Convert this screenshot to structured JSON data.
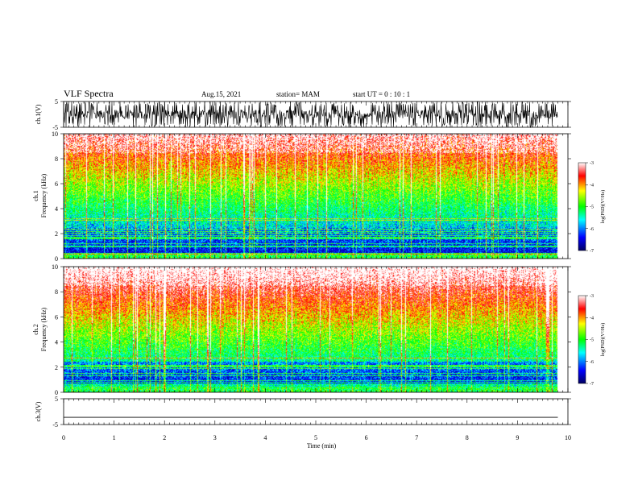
{
  "header": {
    "title": "VLF Spectra",
    "date": "Aug.15, 2021",
    "station": "station= MAM",
    "start": "start UT =   0 : 10 : 1"
  },
  "chart_data": [
    {
      "type": "line",
      "title": "",
      "ylabel": "ch.1(V)",
      "ylim": [
        -5,
        5
      ],
      "yticks": [
        "5",
        "-5"
      ],
      "xlim": [
        0,
        10
      ],
      "description_of_series": "dense impulsive waveform spanning full range"
    },
    {
      "type": "heatmap",
      "ylabel": "ch.1\nFrequency (kHz)",
      "ylabel_line1": "ch.1",
      "ylabel_line2": "Frequency (kHz)",
      "ylim": [
        0,
        10
      ],
      "yticks": [
        "0",
        "2",
        "4",
        "6",
        "8",
        "10"
      ],
      "xlim": [
        0,
        10
      ],
      "colorbar": {
        "label": "log(PSD)(V²/Hz)",
        "range": [
          -7,
          -3
        ],
        "ticks": [
          "-3",
          "-4",
          "-5",
          "-6",
          "-7"
        ]
      }
    },
    {
      "type": "heatmap",
      "ylabel_line1": "ch.2",
      "ylabel_line2": "Frequency (kHz)",
      "ylim": [
        0,
        10
      ],
      "yticks": [
        "0",
        "2",
        "4",
        "6",
        "8",
        "10"
      ],
      "xlim": [
        0,
        10
      ],
      "colorbar": {
        "label": "log(PSD)(V²/Hz)",
        "range": [
          -7,
          -3
        ],
        "ticks": [
          "-3",
          "-4",
          "-5",
          "-6",
          "-7"
        ]
      }
    },
    {
      "type": "line",
      "ylabel": "ch.3(V)",
      "ylim": [
        -5,
        5
      ],
      "yticks": [
        "5",
        "-5"
      ],
      "xlim": [
        0,
        10
      ],
      "series": [
        {
          "x": [
            0,
            9.8
          ],
          "y": [
            -2.2,
            -2.2
          ]
        }
      ]
    }
  ],
  "xaxis": {
    "label": "Time (min)",
    "ticks": [
      "0",
      "1",
      "2",
      "3",
      "4",
      "5",
      "6",
      "7",
      "8",
      "9",
      "10"
    ]
  },
  "colors": {
    "scale": [
      "#000080",
      "#0000ff",
      "#00ffff",
      "#00ff00",
      "#ffff00",
      "#ff0000",
      "#ffffff"
    ]
  }
}
